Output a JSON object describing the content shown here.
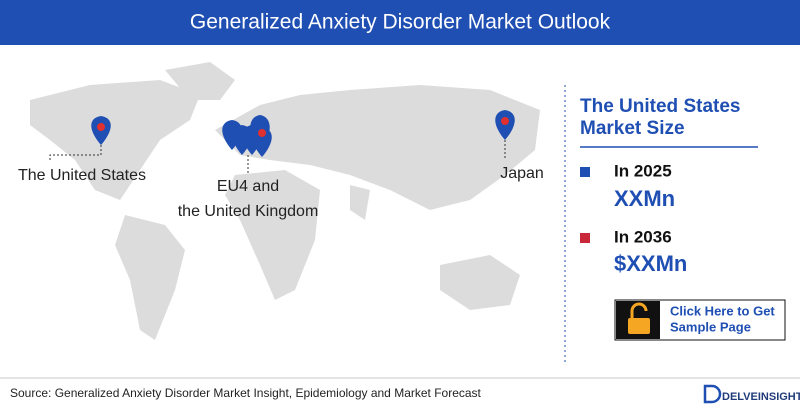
{
  "header": {
    "title": "Generalized Anxiety Disorder Market Outlook"
  },
  "map": {
    "labels": {
      "us": "The United States",
      "eu": [
        "EU4 and",
        "the United Kingdom"
      ],
      "japan": "Japan"
    }
  },
  "panel": {
    "title": [
      "The United States",
      "Market Size"
    ],
    "items": [
      {
        "year": "In 2025",
        "value": "XXMn"
      },
      {
        "year": "In 2036",
        "value": "$XXMn"
      }
    ],
    "button": [
      "Click Here to Get",
      "Sample Page"
    ]
  },
  "footer": {
    "source": "Source: Generalized Anxiety Disorder Market Insight, Epidemiology and Market Forecast",
    "logo": "DELVEINSIGHT"
  }
}
